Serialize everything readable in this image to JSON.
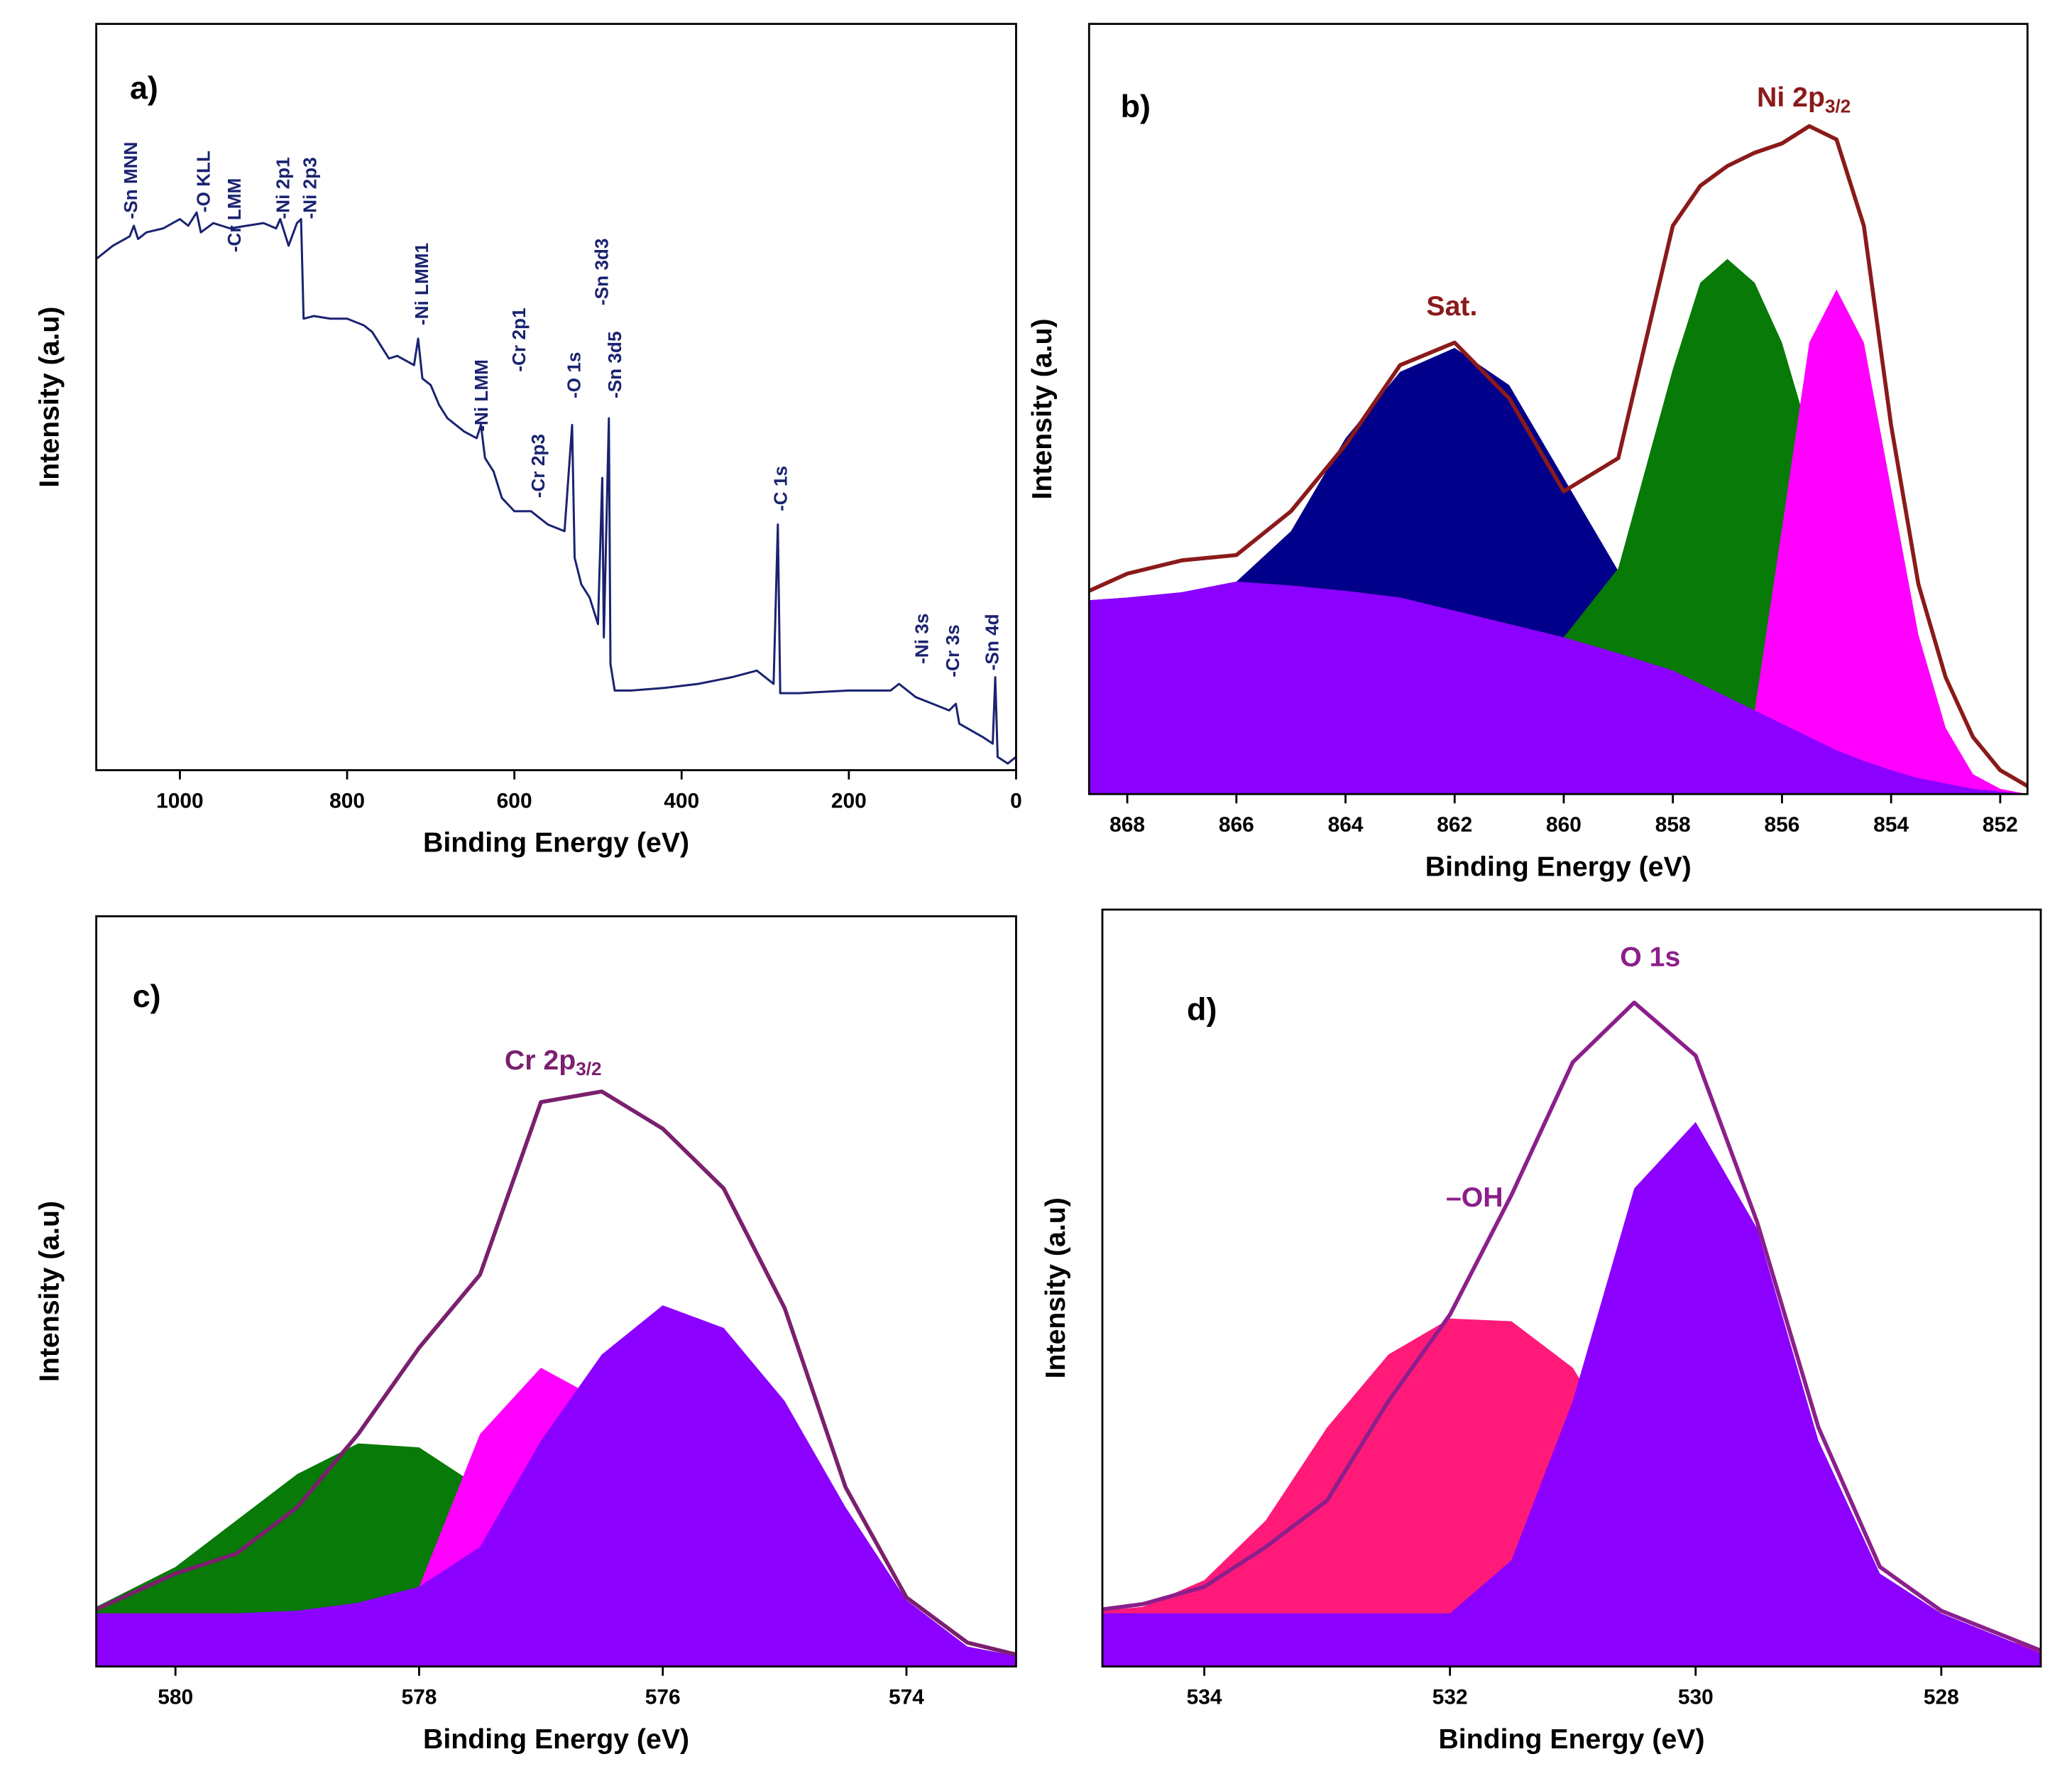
{
  "chart_data": [
    {
      "type": "line",
      "label": "a)",
      "x_label": "Binding Energy (eV)",
      "y_label": "Intensity (a.u)",
      "xlim": [
        1100,
        0
      ],
      "xticks": [
        1000,
        800,
        600,
        400,
        200,
        0
      ],
      "ylim": [
        0,
        562
      ],
      "x": [
        1100,
        1080,
        1060,
        1055,
        1050,
        1040,
        1020,
        1000,
        990,
        980,
        975,
        960,
        940,
        920,
        900,
        885,
        880,
        870,
        860,
        855,
        852,
        840,
        820,
        800,
        780,
        770,
        760,
        750,
        740,
        720,
        715,
        710,
        700,
        690,
        680,
        660,
        645,
        640,
        635,
        625,
        615,
        600,
        580,
        560,
        540,
        531,
        528,
        520,
        510,
        500,
        495,
        493,
        487,
        485,
        480,
        460,
        420,
        380,
        340,
        310,
        300,
        290,
        285,
        282,
        260,
        200,
        150,
        140,
        120,
        100,
        80,
        72,
        68,
        40,
        28,
        25,
        22,
        10,
        0
      ],
      "series": [
        {
          "color": "#1a2370",
          "filled": false,
          "values": [
            385,
            395,
            402,
            410,
            400,
            405,
            408,
            415,
            410,
            420,
            405,
            412,
            408,
            410,
            412,
            408,
            415,
            395,
            412,
            415,
            340,
            342,
            340,
            340,
            335,
            330,
            320,
            310,
            312,
            305,
            325,
            295,
            290,
            275,
            265,
            255,
            250,
            260,
            235,
            225,
            205,
            195,
            195,
            185,
            180,
            260,
            160,
            140,
            130,
            110,
            220,
            100,
            265,
            80,
            60,
            60,
            62,
            65,
            70,
            75,
            70,
            65,
            185,
            58,
            58,
            60,
            60,
            65,
            55,
            50,
            45,
            50,
            35,
            25,
            20,
            70,
            10,
            5,
            10
          ]
        }
      ],
      "annotation_color": "#1a2370",
      "annotation_rotation": -90,
      "annotations": [
        {
          "text": "-Sn MNN",
          "x": 1057,
          "y": 415
        },
        {
          "text": "-O KLL",
          "x": 970,
          "y": 420
        },
        {
          "text": "-Cr LMM",
          "x": 933,
          "y": 390
        },
        {
          "text": "-Ni 2p1",
          "x": 875,
          "y": 415
        },
        {
          "text": "-Ni 2p3",
          "x": 843,
          "y": 415
        },
        {
          "text": "-Ni LMM1",
          "x": 709,
          "y": 335
        },
        {
          "text": "-Ni LMM",
          "x": 638,
          "y": 255
        },
        {
          "text": "-Cr 2p1",
          "x": 593,
          "y": 300
        },
        {
          "text": "-Cr 2p3",
          "x": 570,
          "y": 205
        },
        {
          "text": "-O 1s",
          "x": 527,
          "y": 280
        },
        {
          "text": "-Sn 3d3",
          "x": 494,
          "y": 350
        },
        {
          "text": "-Sn 3d5",
          "x": 478,
          "y": 280
        },
        {
          "text": "-C 1s",
          "x": 280,
          "y": 195
        },
        {
          "text": "-Ni 3s",
          "x": 111,
          "y": 80
        },
        {
          "text": "-Cr 3s",
          "x": 74,
          "y": 70
        },
        {
          "text": "-Sn  4d",
          "x": 27,
          "y": 75
        }
      ]
    },
    {
      "type": "area",
      "label": "b)",
      "x_label": "Binding Energy (eV)",
      "y_label": "Intensity (a.u)",
      "xlim": [
        868.7,
        851.5
      ],
      "xticks": [
        868,
        866,
        864,
        862,
        860,
        858,
        856,
        854,
        852
      ],
      "ylim": [
        0,
        580
      ],
      "x": [
        868.7,
        868,
        867,
        866,
        865,
        864,
        863,
        862,
        861,
        860,
        859,
        858,
        857.5,
        857,
        856.5,
        856,
        855.5,
        855,
        854.5,
        854,
        853.5,
        853,
        852.5,
        852,
        851.5
      ],
      "series": [
        {
          "color": "#00008b",
          "filled": true,
          "values": [
            146,
            148,
            152,
            160,
            198,
            268,
            318,
            336,
            308,
            238,
            168,
            118,
            98,
            80,
            68,
            57,
            46,
            36,
            27,
            19,
            12,
            8,
            4,
            2,
            0
          ]
        },
        {
          "color": "#077a07",
          "filled": true,
          "values": [
            146,
            148,
            152,
            160,
            157,
            153,
            148,
            138,
            128,
            118,
            170,
            320,
            385,
            403,
            385,
            340,
            270,
            200,
            140,
            85,
            45,
            20,
            8,
            3,
            0
          ]
        },
        {
          "color": "#ff00ff",
          "filled": true,
          "values": [
            146,
            148,
            152,
            160,
            157,
            153,
            148,
            138,
            128,
            118,
            106,
            93,
            83,
            73,
            63,
            200,
            340,
            380,
            340,
            230,
            120,
            50,
            15,
            4,
            0
          ]
        },
        {
          "color": "#8b00ff",
          "filled": true,
          "values": [
            146,
            148,
            152,
            160,
            157,
            153,
            148,
            138,
            128,
            118,
            106,
            93,
            83,
            73,
            63,
            53,
            43,
            33,
            25,
            18,
            12,
            8,
            4,
            2,
            0
          ]
        },
        {
          "color": "#8b1a1a",
          "filled": false,
          "values": [
            153,
            166,
            176,
            180,
            213,
            263,
            323,
            340,
            298,
            228,
            253,
            428,
            458,
            473,
            483,
            490,
            503,
            493,
            428,
            278,
            158,
            88,
            43,
            18,
            6
          ]
        }
      ],
      "annotation_color": "#8b1a1a",
      "annotations": [
        {
          "text": "Sat.",
          "x": 862.05,
          "y": 366
        },
        {
          "text": "Ni 2p",
          "sub": "3/2",
          "x": 855.6,
          "y": 523
        }
      ]
    },
    {
      "type": "area",
      "label": "c)",
      "x_label": "Binding Energy (eV)",
      "y_label": "Intensity (a.u)",
      "xlim": [
        580.65,
        573.1
      ],
      "xticks": [
        580,
        578,
        576,
        574
      ],
      "ylim": [
        0,
        565
      ],
      "x": [
        580.65,
        580,
        579.5,
        579,
        578.5,
        578,
        577.5,
        577,
        576.5,
        576,
        575.5,
        575,
        574.5,
        574,
        573.5,
        573.1
      ],
      "series": [
        {
          "color": "#077a07",
          "filled": true,
          "values": [
            45,
            75,
            110,
            145,
            168,
            165,
            135,
            95,
            60,
            42,
            40,
            40,
            40,
            35,
            12,
            6
          ]
        },
        {
          "color": "#ff00ff",
          "filled": true,
          "values": [
            40,
            40,
            40,
            40,
            45,
            60,
            175,
            225,
            200,
            130,
            70,
            45,
            40,
            35,
            12,
            6
          ]
        },
        {
          "color": "#8b00ff",
          "filled": true,
          "values": [
            40,
            40,
            40,
            42,
            48,
            60,
            90,
            170,
            235,
            272,
            255,
            200,
            120,
            50,
            15,
            8
          ]
        },
        {
          "color": "#7b1f6e",
          "filled": false,
          "values": [
            43,
            70,
            85,
            120,
            175,
            240,
            295,
            425,
            433,
            405,
            360,
            270,
            135,
            52,
            18,
            9
          ]
        }
      ],
      "annotation_color": "#7b1f6e",
      "annotations": [
        {
          "text": "Cr 2p",
          "sub": "3/2",
          "x": 576.9,
          "y": 455
        }
      ]
    },
    {
      "type": "area",
      "label": "d)",
      "x_label": "Binding Energy (eV)",
      "y_label": "Intensity (a.u)",
      "xlim": [
        534.83,
        527.19
      ],
      "xticks": [
        534,
        532,
        530,
        528
      ],
      "ylim": [
        0,
        570
      ],
      "x": [
        534.83,
        534.5,
        534,
        533.5,
        533,
        532.5,
        532,
        531.5,
        531,
        530.5,
        530,
        529.5,
        529,
        528.5,
        528,
        527.19
      ],
      "series": [
        {
          "color": "#ff1a7a",
          "filled": true,
          "values": [
            42,
            45,
            65,
            110,
            180,
            235,
            262,
            260,
            225,
            150,
            90,
            55,
            40,
            38,
            35,
            12
          ]
        },
        {
          "color": "#8b00ff",
          "filled": true,
          "values": [
            40,
            40,
            40,
            40,
            40,
            40,
            40,
            80,
            200,
            360,
            410,
            330,
            170,
            70,
            40,
            10
          ]
        },
        {
          "color": "#8b1f8b",
          "filled": false,
          "values": [
            43,
            47,
            60,
            90,
            125,
            200,
            265,
            355,
            455,
            500,
            460,
            335,
            180,
            75,
            42,
            12
          ]
        }
      ],
      "annotation_color": "#8b1f8b",
      "annotations": [
        {
          "text": "O 1s",
          "x": 530.37,
          "y": 533
        },
        {
          "text": "–OH",
          "x": 531.8,
          "y": 352
        }
      ]
    }
  ]
}
